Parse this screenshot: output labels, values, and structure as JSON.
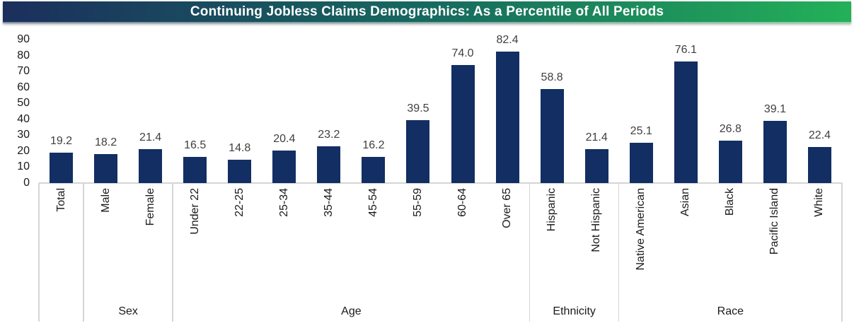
{
  "title_bar": {
    "title": "Continuing Jobless Claims Demographics: As a Percentile of All Periods",
    "gradient": [
      "#1B2F5D",
      "#17695F",
      "#23B158"
    ],
    "text_color": "#FFFFFF"
  },
  "chart_data": {
    "type": "bar",
    "title": "Continuing Jobless Claims Demographics: As a Percentile of All Periods",
    "xlabel": "",
    "ylabel": "",
    "ylim": [
      0,
      90
    ],
    "y_ticks": [
      "0",
      "10",
      "20",
      "30",
      "40",
      "50",
      "60",
      "70",
      "80",
      "90"
    ],
    "grid": false,
    "legend": false,
    "bar_color": "#122E63",
    "value_label_color": "#3F3F3F",
    "groups": [
      {
        "label": "",
        "categories": [
          "Total"
        ],
        "values": [
          19.2
        ]
      },
      {
        "label": "Sex",
        "categories": [
          "Male",
          "Female"
        ],
        "values": [
          18.2,
          21.4
        ]
      },
      {
        "label": "Age",
        "categories": [
          "Under 22",
          "22-25",
          "25-34",
          "35-44",
          "45-54",
          "55-59",
          "60-64",
          "Over 65"
        ],
        "values": [
          16.5,
          14.8,
          20.4,
          23.2,
          16.2,
          39.5,
          74.0,
          82.4
        ]
      },
      {
        "label": "Ethnicity",
        "categories": [
          "Hispanic",
          "Not Hispanic"
        ],
        "values": [
          58.8,
          21.4
        ]
      },
      {
        "label": "Race",
        "categories": [
          "Native American",
          "Asian",
          "Black",
          "Pacific Island",
          "White"
        ],
        "values": [
          25.1,
          76.1,
          26.8,
          39.1,
          22.4
        ]
      }
    ]
  }
}
